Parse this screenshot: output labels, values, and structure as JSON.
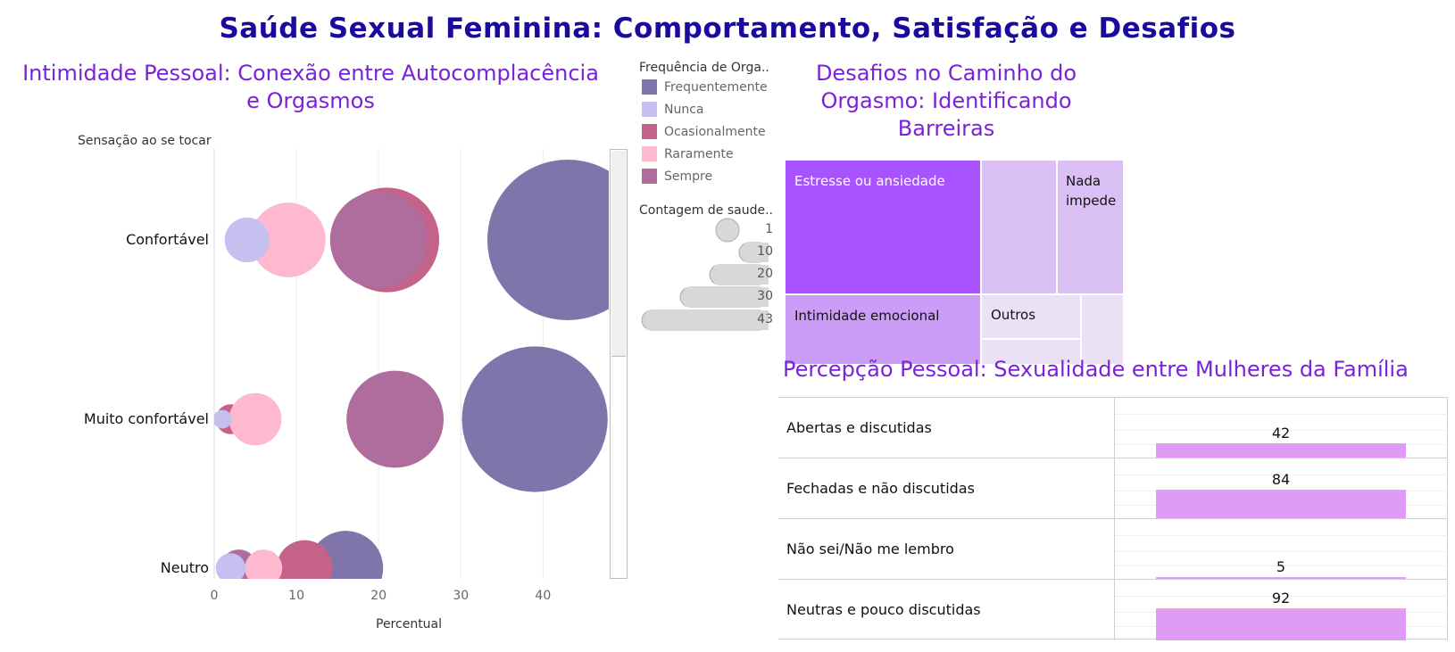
{
  "title": "Saúde Sexual Feminina: Comportamento, Satisfação e Desafios",
  "colors": {
    "title": "#1a0a9e",
    "section_title": "#7a22d9",
    "bar": "#df9cf7"
  },
  "bubble_panel": {
    "title": "Intimidade Pessoal: Conexão entre Autocomplacência e Orgasmos",
    "y_axis_title": "Sensação ao se tocar",
    "x_axis_title": "Percentual",
    "legend_title": "Frequência de Orga..",
    "size_legend_title": "Contagem de saude..",
    "size_legend_values": [
      "1",
      "10",
      "20",
      "30",
      "43"
    ]
  },
  "treemap_panel": {
    "title": "Desafios no Caminho do Orgasmo: Identificando Barreiras",
    "labels": {
      "estresse": "Estresse ou ansiedade",
      "nada": "Nada impede",
      "intimidade": "Intimidade emocional",
      "outros": "Outros"
    }
  },
  "table_panel": {
    "title": "Percepção Pessoal: Sexualidade entre Mulheres da Família"
  },
  "chart_data": [
    {
      "type": "scatter",
      "title": "Intimidade Pessoal: Conexão entre Autocomplacência e Orgasmos",
      "xlabel": "Percentual",
      "ylabel": "Sensação ao se tocar",
      "categories": [
        "Confortável",
        "Muito confortável",
        "Neutro"
      ],
      "xlim": [
        0,
        48
      ],
      "x_ticks": [
        "0",
        "10",
        "20",
        "30",
        "40"
      ],
      "grid": true,
      "legend_position": "right",
      "series": [
        {
          "name": "Frequentemente",
          "color": "#8075ab",
          "x": [
            43,
            39,
            16
          ],
          "size": [
            43,
            39,
            20
          ]
        },
        {
          "name": "Nunca",
          "color": "#c6c0f0",
          "x": [
            4,
            1,
            2
          ],
          "size": [
            12,
            5,
            8
          ]
        },
        {
          "name": "Ocasionalmente",
          "color": "#c4628a",
          "x": [
            21,
            2,
            11
          ],
          "size": [
            28,
            8,
            15
          ]
        },
        {
          "name": "Raramente",
          "color": "#feb9cf",
          "x": [
            9,
            5,
            6
          ],
          "size": [
            20,
            14,
            10
          ]
        },
        {
          "name": "Sempre",
          "color": "#af6d9e",
          "x": [
            20,
            22,
            3
          ],
          "size": [
            26,
            26,
            10
          ]
        }
      ]
    },
    {
      "type": "treemap",
      "title": "Desafios no Caminho do Orgasmo: Identificando Barreiras",
      "items": [
        {
          "label": "Estresse ou ansiedade",
          "value": 31,
          "color": "#a952ff"
        },
        {
          "label": "Intimidade emocional",
          "value": 16,
          "color": "#cb9df7"
        },
        {
          "label": "",
          "value": 12,
          "color": "#dac0f4"
        },
        {
          "label": "Nada impede",
          "value": 11,
          "color": "#dac0f4"
        },
        {
          "label": "Outros",
          "value": 6,
          "color": "#ebe1f6"
        },
        {
          "label": "",
          "value": 4,
          "color": "#ebe1f6"
        },
        {
          "label": "",
          "value": 4,
          "color": "#ebe1f6"
        }
      ]
    },
    {
      "type": "bar",
      "title": "Percepção Pessoal: Sexualidade entre Mulheres da Família",
      "categories": [
        "Abertas e discutidas",
        "Fechadas e não discutidas",
        "Não sei/Não me lembro",
        "Neutras e pouco discutidas"
      ],
      "values": [
        42,
        84,
        5,
        92
      ],
      "value_labels": [
        "42",
        "84",
        "5",
        "92"
      ]
    }
  ]
}
